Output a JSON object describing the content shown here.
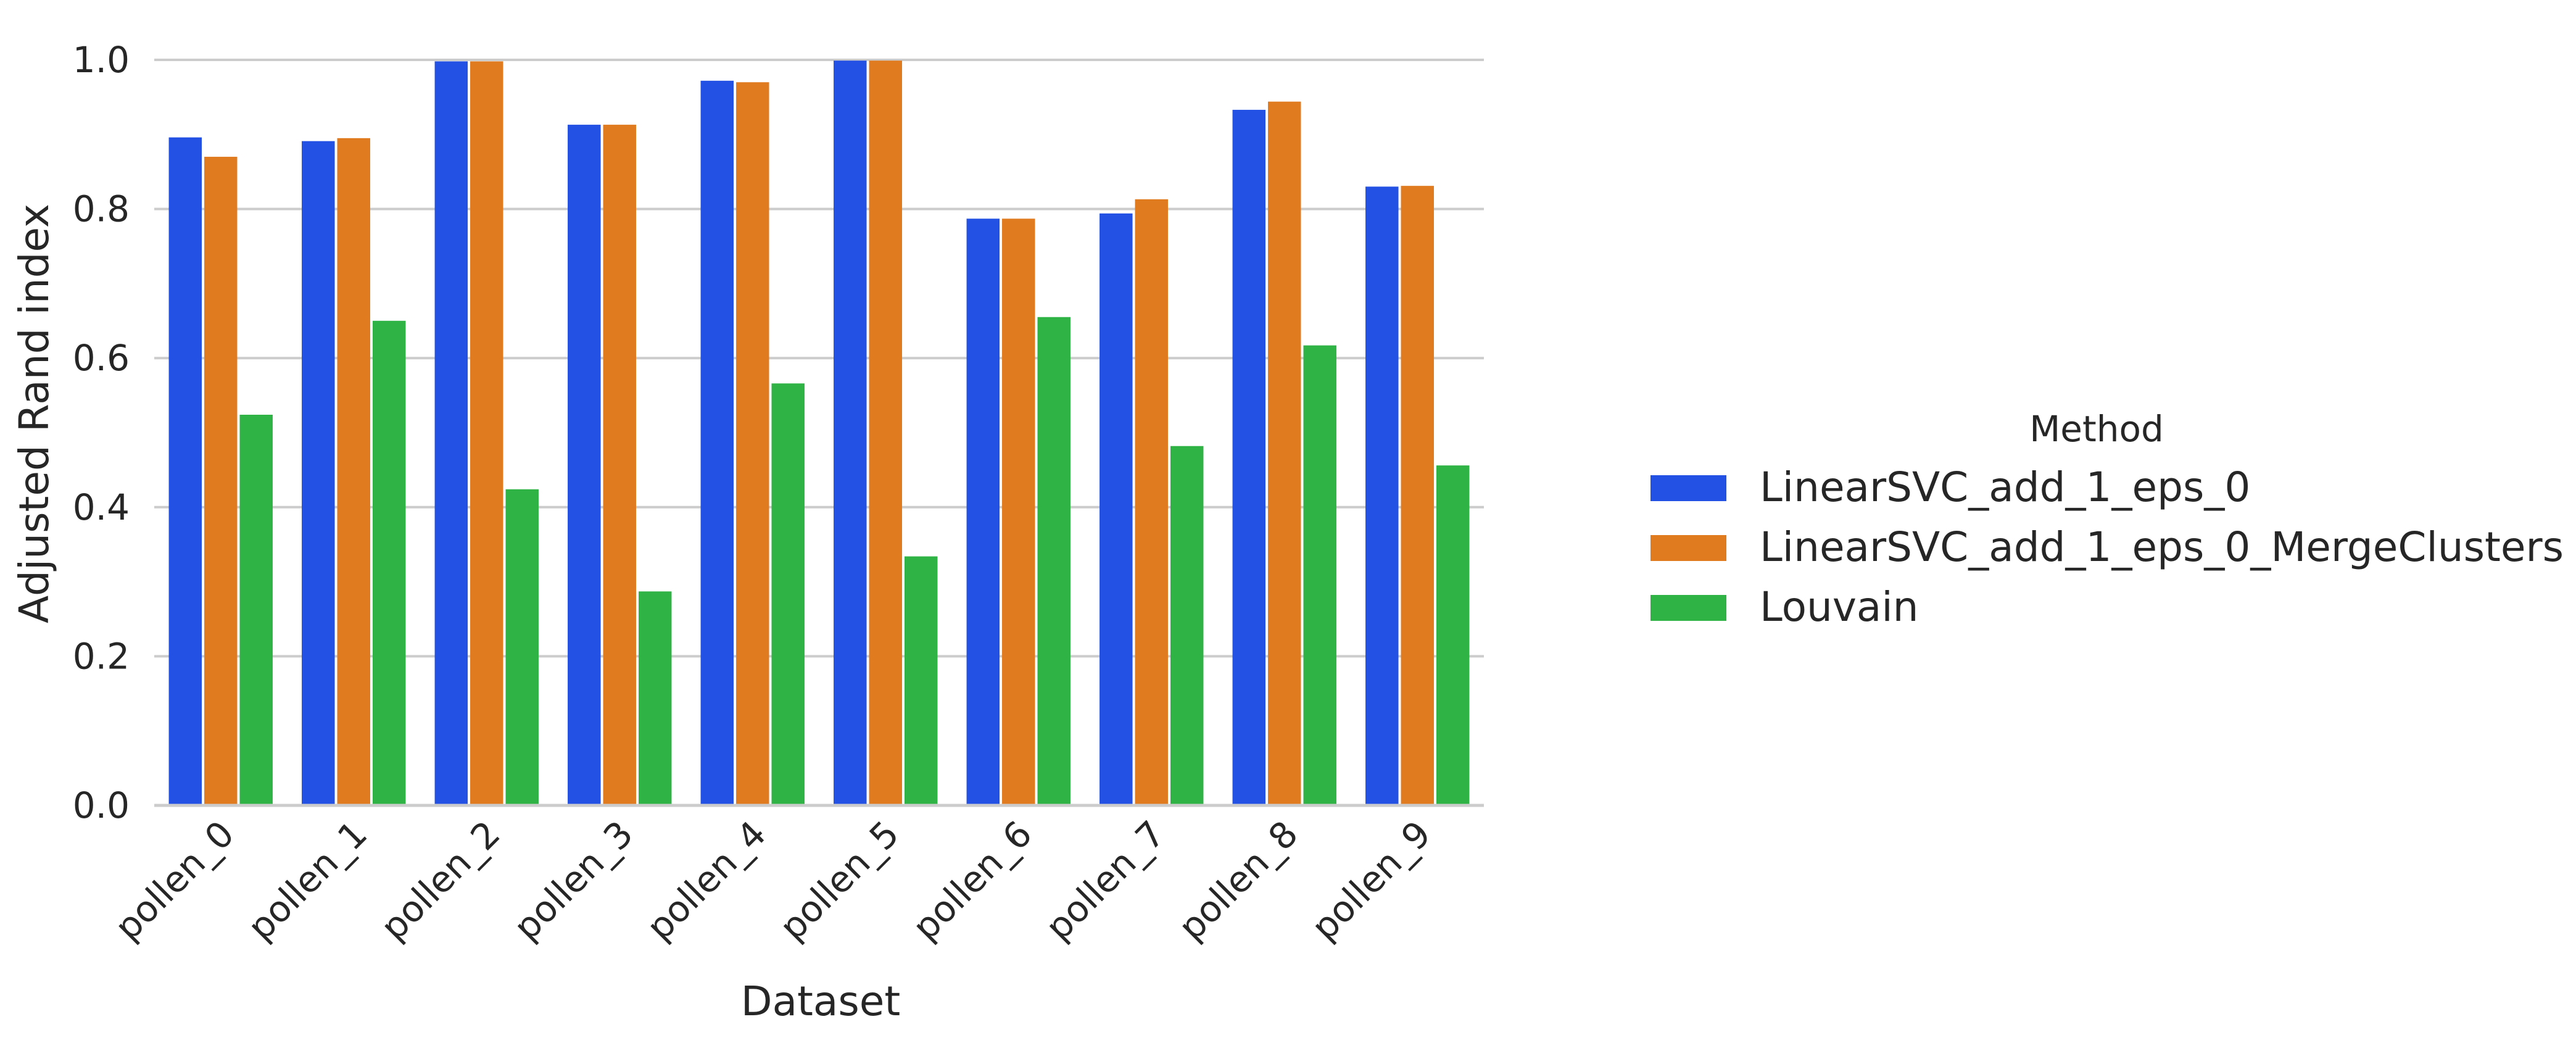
{
  "chart_data": {
    "type": "bar",
    "title": "",
    "xlabel": "Dataset",
    "ylabel": "Adjusted Rand index",
    "ylim": [
      0,
      1.0
    ],
    "yticks": [
      "0.0",
      "0.2",
      "0.4",
      "0.6",
      "0.8",
      "1.0"
    ],
    "grid": true,
    "legend_title": "Method",
    "legend_position": "right",
    "categories": [
      "pollen_0",
      "pollen_1",
      "pollen_2",
      "pollen_3",
      "pollen_4",
      "pollen_5",
      "pollen_6",
      "pollen_7",
      "pollen_8",
      "pollen_9"
    ],
    "series": [
      {
        "name": "LinearSVC_add_1_eps_0",
        "color": "#2351e3",
        "values": [
          0.896,
          0.891,
          0.998,
          0.913,
          0.972,
          0.999,
          0.787,
          0.794,
          0.933,
          0.83
        ]
      },
      {
        "name": "LinearSVC_add_1_eps_0_MergeClusters",
        "color": "#e07b20",
        "values": [
          0.87,
          0.895,
          0.998,
          0.913,
          0.97,
          0.999,
          0.787,
          0.813,
          0.944,
          0.831
        ]
      },
      {
        "name": "Louvain",
        "color": "#2fb344",
        "values": [
          0.524,
          0.65,
          0.424,
          0.287,
          0.566,
          0.334,
          0.655,
          0.482,
          0.617,
          0.456
        ]
      }
    ]
  }
}
